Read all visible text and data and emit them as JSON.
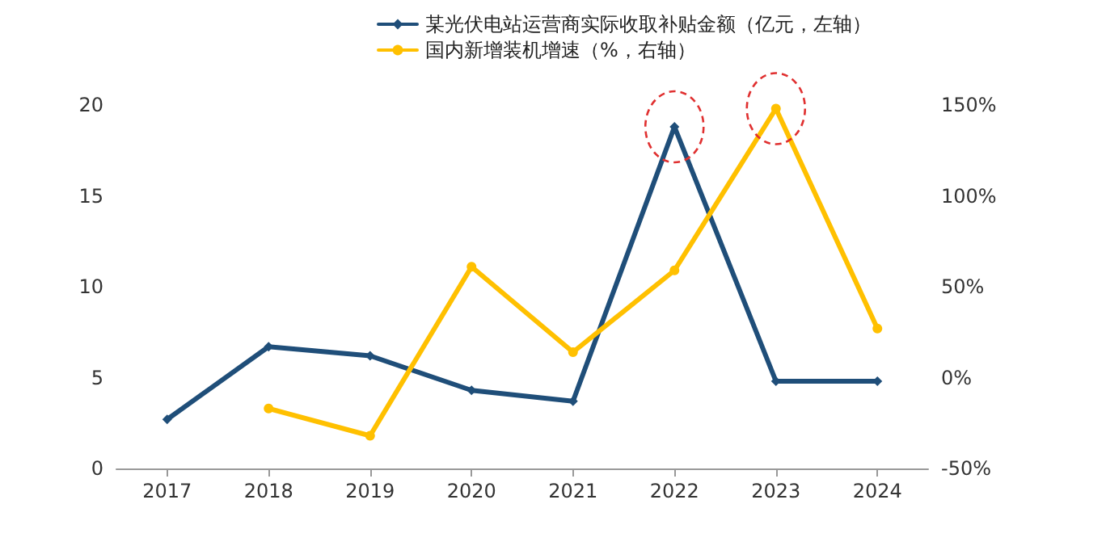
{
  "chart_data": {
    "type": "line",
    "categories": [
      "2017",
      "2018",
      "2019",
      "2020",
      "2021",
      "2022",
      "2023",
      "2024"
    ],
    "series": [
      {
        "name": "某光伏电站运营商实际收取补贴金额（亿元，左轴）",
        "color": "#1f4e79",
        "values": [
          2.7,
          6.7,
          6.2,
          4.3,
          3.7,
          18.8,
          4.8,
          4.8
        ],
        "marker": "diamond"
      },
      {
        "name": "国内新增装机增速（%，右轴）",
        "color": "#ffc000",
        "values": [
          null,
          -17,
          -32,
          61,
          14,
          59,
          148,
          27
        ],
        "axis": "y2",
        "marker": "circle"
      }
    ],
    "ylim": [
      0,
      20
    ],
    "yticks": [
      0,
      5,
      10,
      15,
      20
    ],
    "y2lim": [
      -50,
      150
    ],
    "y2ticks": [
      {
        "value": -50,
        "label": "-50%"
      },
      {
        "value": 0,
        "label": "0%"
      },
      {
        "value": 50,
        "label": "50%"
      },
      {
        "value": 100,
        "label": "100%"
      },
      {
        "value": 150,
        "label": "150%"
      }
    ],
    "grid": false,
    "legend": "top",
    "line_style": "solid"
  }
}
